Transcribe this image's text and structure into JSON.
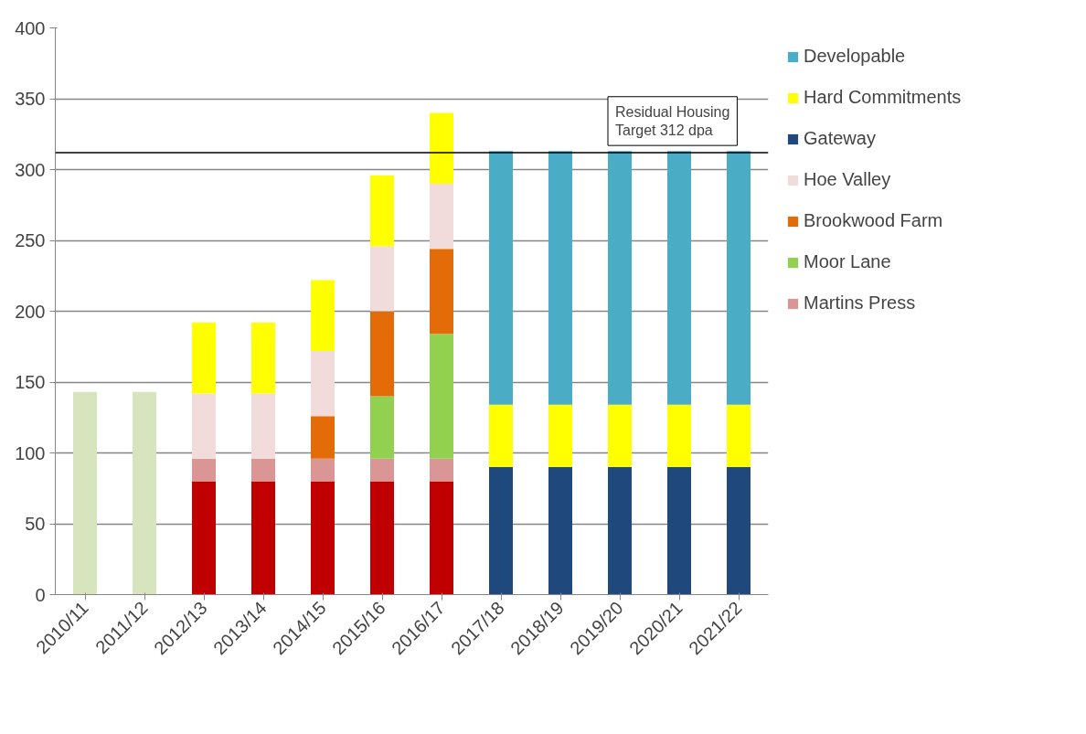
{
  "chart_data": {
    "type": "bar",
    "stacked": true,
    "categories": [
      "2010/11",
      "2011/12",
      "2012/13",
      "2013/14",
      "2014/15",
      "2015/16",
      "2016/17",
      "2017/18",
      "2018/19",
      "2019/20",
      "2020/21",
      "2021/22"
    ],
    "series": [
      {
        "color": "#d7e4bd",
        "values": [
          143,
          143,
          null,
          null,
          null,
          null,
          null,
          null,
          null,
          null,
          null,
          null
        ]
      },
      {
        "color": "#c00000",
        "values": [
          null,
          null,
          80,
          80,
          80,
          80,
          80,
          null,
          null,
          null,
          null,
          null
        ]
      },
      {
        "name": "Martins Press",
        "color": "#da9694",
        "values": [
          null,
          null,
          16,
          16,
          16,
          16,
          16,
          null,
          null,
          null,
          null,
          null
        ]
      },
      {
        "name": "Moor Lane",
        "color": "#92d050",
        "values": [
          null,
          null,
          null,
          null,
          null,
          44,
          88,
          null,
          null,
          null,
          null,
          null
        ]
      },
      {
        "name": "Brookwood Farm",
        "color": "#e36c09",
        "values": [
          null,
          null,
          null,
          null,
          30,
          60,
          60,
          null,
          null,
          null,
          null,
          null
        ]
      },
      {
        "name": "Hoe Valley",
        "color": "#f2dcdb",
        "values": [
          null,
          null,
          46,
          46,
          46,
          46,
          46,
          null,
          null,
          null,
          null,
          null
        ]
      },
      {
        "name": "Gateway",
        "color": "#1f497d",
        "values": [
          null,
          null,
          null,
          null,
          null,
          null,
          null,
          90,
          90,
          90,
          90,
          90
        ]
      },
      {
        "name": "Hard Commitments",
        "color": "#ffff00",
        "values": [
          null,
          null,
          50,
          50,
          50,
          50,
          50,
          44,
          44,
          44,
          44,
          44
        ]
      },
      {
        "name": "Developable",
        "color": "#4bacc6",
        "values": [
          null,
          null,
          null,
          null,
          null,
          null,
          null,
          179,
          179,
          179,
          179,
          179
        ]
      }
    ],
    "ylim": [
      0,
      400
    ],
    "yticks": [
      0,
      50,
      100,
      150,
      200,
      250,
      300,
      350,
      400
    ],
    "grid": "y",
    "legend": "right",
    "ref_lines": [
      {
        "axis": "y",
        "value": 312,
        "label": "Residual Housing\nTarget 312 dpa",
        "color": "#000000"
      }
    ]
  }
}
